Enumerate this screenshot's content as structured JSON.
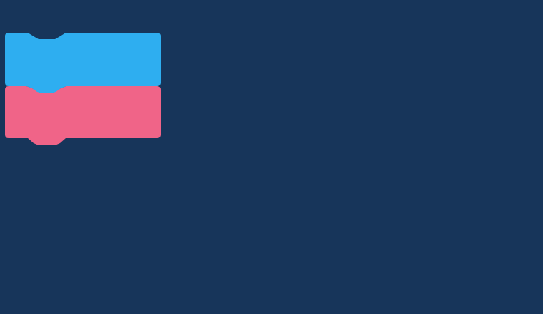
{
  "workspace": {
    "background_color": "#17355a"
  },
  "blocks": [
    {
      "name": "block-blue",
      "color": "#2eaef0"
    },
    {
      "name": "block-pink",
      "color": "#f06488"
    }
  ]
}
